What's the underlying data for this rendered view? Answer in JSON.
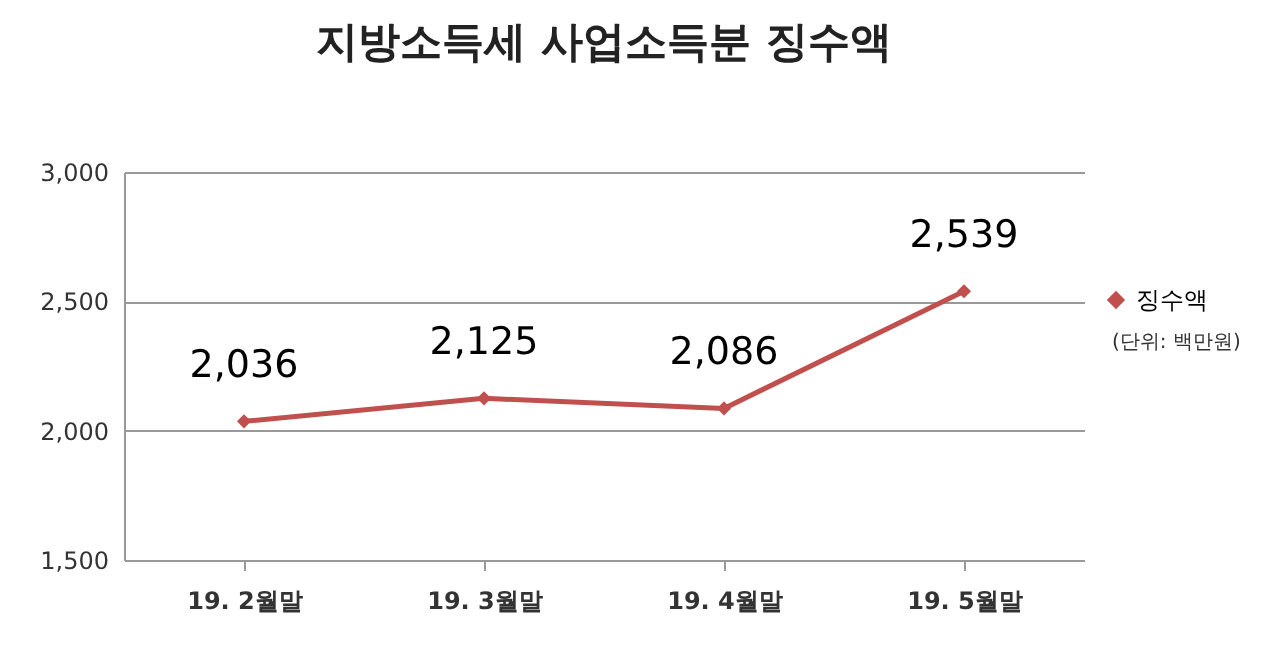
{
  "chart_data": {
    "type": "line",
    "title": "지방소득세 사업소득분 징수액",
    "categories": [
      "19. 2월말",
      "19. 3월말",
      "19. 4월말",
      "19. 5월말"
    ],
    "series": [
      {
        "name": "징수액",
        "color": "#c0504d",
        "values": [
          2036,
          2125,
          2086,
          2539
        ],
        "value_labels": [
          "2,036",
          "2,125",
          "2,086",
          "2,539"
        ]
      }
    ],
    "ylim": [
      1500,
      3000
    ],
    "yticks": [
      {
        "value": 1500,
        "label": "1,500"
      },
      {
        "value": 2000,
        "label": "2,000"
      },
      {
        "value": 2500,
        "label": "2,500"
      },
      {
        "value": 3000,
        "label": "3,000"
      }
    ],
    "grid": "y",
    "legend": "right",
    "marker": "diamond",
    "annotations": [
      "(단위: 백만원)"
    ]
  }
}
